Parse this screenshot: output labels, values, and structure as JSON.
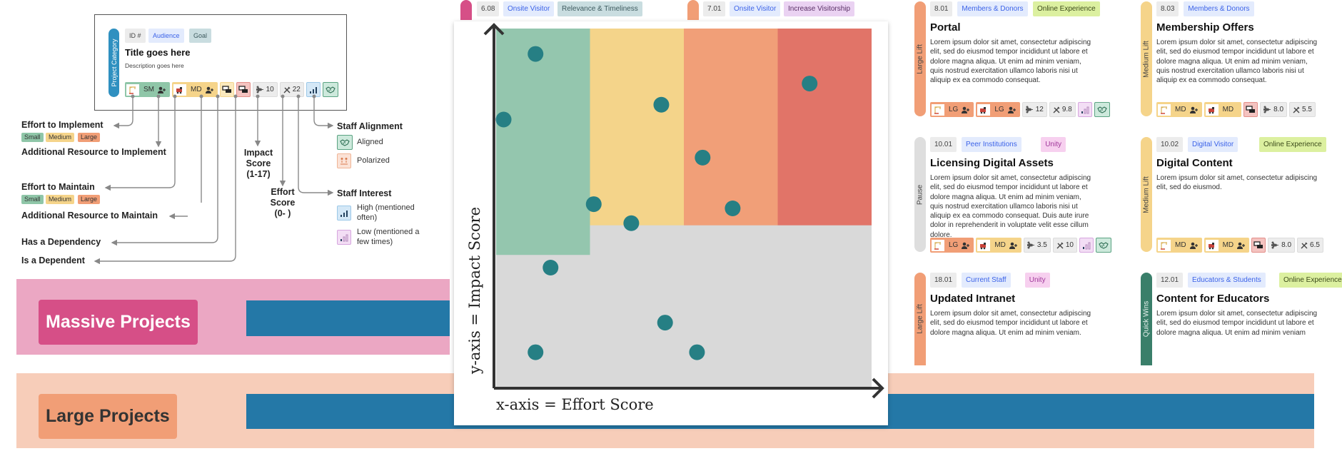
{
  "colors": {
    "quick_wins": "#3a7f6a",
    "medium_lift": "#f5d48a",
    "large_lift": "#f19e76",
    "massive": "#d64f87",
    "pause": "#dedede",
    "project_category": "#2f90c0",
    "band_bar": "#2478a7",
    "dot": "#267f84"
  },
  "legend": {
    "category": "Project Category",
    "id": "ID #",
    "audience": "Audience",
    "goal": "Goal",
    "title": "Title goes here",
    "description": "Description goes here",
    "chips": [
      {
        "kind": "implement",
        "size": "SM",
        "level": "green",
        "resource": true
      },
      {
        "kind": "maintain",
        "size": "MD",
        "level": "yellow",
        "resource": true
      },
      {
        "kind": "has-dependency"
      },
      {
        "kind": "is-dependent"
      },
      {
        "kind": "impact",
        "value": "10"
      },
      {
        "kind": "effort",
        "value": "22"
      },
      {
        "kind": "interest",
        "level": "high"
      },
      {
        "kind": "alignment",
        "level": "aligned"
      }
    ],
    "effort_implement": "Effort to Implement",
    "sizes": [
      "Small",
      "Medium",
      "Large"
    ],
    "additional_implement": "Additional Resource to Implement",
    "effort_maintain": "Effort to Maintain",
    "additional_maintain": "Additional Resource to Maintain",
    "has_dependency": "Has a Dependency",
    "is_dependent": "Is a Dependent",
    "impact_score": "Impact Score (1-17)",
    "effort_score": "Effort Score (0-  )",
    "staff_alignment": "Staff Alignment",
    "aligned": "Aligned",
    "polarized": "Polarized",
    "staff_interest": "Staff Interest",
    "high": "High (mentioned often)",
    "low": "Low (mentioned a few times)"
  },
  "bands": [
    {
      "label": "Massive Projects"
    },
    {
      "label": "Large Projects"
    }
  ],
  "top_tags": [
    {
      "id": "6.08",
      "audience": "Onsite Visitor",
      "goal": "Relevance & Timeliness"
    },
    {
      "id": "7.01",
      "audience": "Onsite Visitor",
      "goal": "Increase Visitorship"
    }
  ],
  "chart_data": {
    "type": "scatter",
    "xlabel": "x-axis = Effort Score",
    "ylabel": "y-axis = Impact Score",
    "xlim": [
      0,
      20
    ],
    "ylim": [
      0,
      17
    ],
    "regions": [
      {
        "name": "quick-wins",
        "x": [
          0,
          5
        ],
        "y": [
          6.3,
          17
        ],
        "color": "#94c6ae"
      },
      {
        "name": "medium-lift",
        "x": [
          5,
          10
        ],
        "y": [
          7.7,
          17
        ],
        "color": "#f4d48a"
      },
      {
        "name": "large-lift",
        "x": [
          10,
          15
        ],
        "y": [
          7.7,
          17
        ],
        "color": "#f19f78"
      },
      {
        "name": "massive",
        "x": [
          15,
          20
        ],
        "y": [
          7.7,
          17
        ],
        "color": "#e17468"
      }
    ],
    "background": "#d9d9d9",
    "points": [
      [
        2.1,
        15.8
      ],
      [
        0.4,
        12.7
      ],
      [
        8.8,
        13.4
      ],
      [
        16.7,
        14.4
      ],
      [
        11.0,
        10.9
      ],
      [
        5.2,
        8.7
      ],
      [
        12.6,
        8.5
      ],
      [
        7.2,
        7.8
      ],
      [
        2.9,
        5.7
      ],
      [
        9.0,
        3.1
      ],
      [
        2.1,
        1.7
      ],
      [
        10.7,
        1.7
      ]
    ]
  },
  "cards": [
    {
      "category": "Large Lift",
      "color": "#f19e76",
      "id": "8.01",
      "audience": "Members & Donors",
      "goal": "Online Experience",
      "goal_class": "t-online",
      "title": "Portal",
      "body": "Lorem ipsum dolor sit amet, consectetur adipiscing elit, sed do eiusmod tempor incididunt ut labore et dolore magna aliqua. Ut enim ad minim veniam, quis nostrud exercitation ullamco laboris nisi ut aliquip ex ea commodo consequat.",
      "chips": [
        {
          "kind": "implement",
          "size": "LG",
          "level": "orange",
          "resource": true
        },
        {
          "kind": "maintain",
          "size": "LG",
          "level": "orange",
          "resource": true
        },
        {
          "kind": "impact",
          "value": "12"
        },
        {
          "kind": "effort",
          "value": "9.8"
        },
        {
          "kind": "interest",
          "level": "low"
        },
        {
          "kind": "alignment",
          "level": "aligned"
        }
      ]
    },
    {
      "category": "Pause",
      "color": "#dedede",
      "id": "10.01",
      "audience": "Peer Institutions",
      "goal": "Unity",
      "goal_class": "t-unity",
      "title": "Licensing Digital Assets",
      "body": "Lorem ipsum dolor sit amet, consectetur adipiscing elit, sed do eiusmod tempor incididunt ut labore et dolore magna aliqua. Ut enim ad minim veniam, quis nostrud exercitation ullamco laboris nisi ut aliquip ex ea commodo consequat. Duis aute irure dolor in reprehenderit in voluptate velit esse cillum dolore.",
      "chips": [
        {
          "kind": "implement",
          "size": "LG",
          "level": "orange",
          "resource": true
        },
        {
          "kind": "maintain",
          "size": "MD",
          "level": "yellow",
          "resource": true
        },
        {
          "kind": "impact",
          "value": "3.5"
        },
        {
          "kind": "effort",
          "value": "10"
        },
        {
          "kind": "interest",
          "level": "low"
        },
        {
          "kind": "alignment",
          "level": "aligned"
        }
      ]
    },
    {
      "category": "Large Lift",
      "color": "#f19e76",
      "id": "18.01",
      "audience": "Current Staff",
      "goal": "Unity",
      "goal_class": "t-unity",
      "title": "Updated Intranet",
      "body": "Lorem ipsum dolor sit amet, consectetur adipiscing elit, sed do eiusmod tempor incididunt ut labore et dolore magna aliqua. Ut enim ad minim veniam.",
      "chips": []
    },
    {
      "category": "Medium Lift",
      "color": "#f5d48a",
      "id": "8.03",
      "audience": "Members & Donors",
      "goal": "",
      "goal_class": "",
      "title": "Membership Offers",
      "body": "Lorem ipsum dolor sit amet, consectetur adipiscing elit, sed do eiusmod tempor incididunt ut labore et dolore magna aliqua. Ut enim ad minim veniam, quis nostrud exercitation ullamco laboris nisi ut aliquip ex ea commodo consequat.",
      "chips": [
        {
          "kind": "implement",
          "size": "MD",
          "level": "yellow",
          "resource": true
        },
        {
          "kind": "maintain",
          "size": "MD",
          "level": "yellow",
          "resource": false
        },
        {
          "kind": "is-dependent"
        },
        {
          "kind": "impact",
          "value": "8.0"
        },
        {
          "kind": "effort",
          "value": "5.5"
        }
      ]
    },
    {
      "category": "Medium Lift",
      "color": "#f5d48a",
      "id": "10.02",
      "audience": "Digital Visitor",
      "goal": "Online Experience",
      "goal_class": "t-online",
      "title": "Digital Content",
      "body": "Lorem ipsum dolor sit amet, consectetur adipiscing elit, sed do eiusmod.",
      "chips": [
        {
          "kind": "implement",
          "size": "MD",
          "level": "yellow",
          "resource": true
        },
        {
          "kind": "maintain",
          "size": "MD",
          "level": "yellow",
          "resource": true
        },
        {
          "kind": "is-dependent"
        },
        {
          "kind": "impact",
          "value": "8.0"
        },
        {
          "kind": "effort",
          "value": "6.5"
        }
      ]
    },
    {
      "category": "Quick Wins",
      "color": "#3a7f6a",
      "id": "12.01",
      "audience": "Educators & Students",
      "goal": "Online Experience",
      "goal_class": "t-online",
      "title": "Content for Educators",
      "body": "Lorem ipsum dolor sit amet, consectetur adipiscing elit, sed do eiusmod tempor incididunt ut labore et dolore magna aliqua. Ut enim ad minim veniam",
      "chips": []
    }
  ]
}
